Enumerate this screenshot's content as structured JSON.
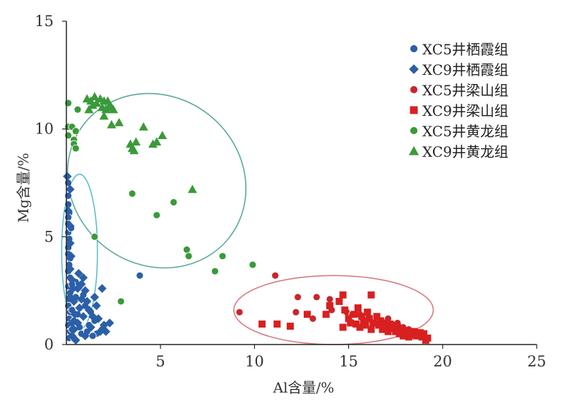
{
  "chart_data": {
    "type": "scatter",
    "xlabel": "Al含量/%",
    "ylabel": "Mg含量/%",
    "xlim": [
      0,
      25
    ],
    "ylim": [
      0,
      15
    ],
    "xticks": [
      "5",
      "10",
      "15",
      "20",
      "25"
    ],
    "yticks": [
      "0",
      "5",
      "10",
      "15"
    ],
    "grid": false,
    "legend_position": "top-right",
    "series": [
      {
        "name": "XC5井栖霞组",
        "marker": "circle",
        "color": "#2b5fa8",
        "points": [
          [
            0.1,
            7.5
          ],
          [
            0.1,
            6.9
          ],
          [
            0.1,
            6.5
          ],
          [
            0.15,
            6.1
          ],
          [
            0.1,
            5.9
          ],
          [
            0.1,
            5.6
          ],
          [
            0.1,
            5.2
          ],
          [
            0.15,
            4.9
          ],
          [
            0.1,
            4.5
          ],
          [
            0.1,
            4.2
          ],
          [
            0.2,
            4.0
          ],
          [
            0.15,
            3.7
          ],
          [
            0.1,
            3.4
          ],
          [
            0.2,
            3.1
          ],
          [
            0.1,
            2.7
          ],
          [
            0.2,
            2.4
          ],
          [
            0.15,
            2.1
          ],
          [
            0.1,
            1.8
          ],
          [
            0.2,
            1.5
          ],
          [
            0.15,
            1.2
          ],
          [
            0.1,
            0.9
          ],
          [
            0.2,
            0.6
          ],
          [
            0.15,
            0.3
          ],
          [
            0.3,
            1.6
          ],
          [
            0.4,
            1.1
          ],
          [
            0.3,
            0.7
          ],
          [
            0.5,
            2.2
          ],
          [
            0.6,
            1.4
          ],
          [
            0.7,
            0.8
          ],
          [
            0.8,
            0.5
          ],
          [
            1.0,
            1.8
          ],
          [
            1.1,
            0.6
          ],
          [
            1.3,
            1.5
          ],
          [
            1.2,
            0.9
          ],
          [
            1.5,
            1.1
          ],
          [
            1.6,
            0.5
          ],
          [
            1.9,
            0.7
          ],
          [
            0.5,
            2.9
          ],
          [
            0.4,
            0.3
          ],
          [
            0.9,
            2.3
          ],
          [
            1.4,
            0.4
          ],
          [
            3.9,
            3.2
          ],
          [
            0.3,
            2.8
          ],
          [
            0.25,
            5.4
          ]
        ]
      },
      {
        "name": "XC9井栖霞组",
        "marker": "diamond",
        "color": "#2b5fa8",
        "points": [
          [
            0.05,
            7.8
          ],
          [
            0.2,
            7.2
          ],
          [
            0.1,
            6.2
          ],
          [
            0.2,
            5.5
          ],
          [
            0.2,
            4.7
          ],
          [
            0.25,
            4.1
          ],
          [
            0.2,
            3.5
          ],
          [
            0.3,
            3.0
          ],
          [
            0.35,
            2.6
          ],
          [
            0.2,
            2.2
          ],
          [
            0.4,
            2.0
          ],
          [
            0.45,
            1.4
          ],
          [
            0.3,
            1.0
          ],
          [
            0.4,
            0.7
          ],
          [
            0.3,
            0.4
          ],
          [
            0.6,
            2.6
          ],
          [
            0.7,
            1.7
          ],
          [
            0.6,
            1.0
          ],
          [
            0.8,
            2.1
          ],
          [
            0.9,
            3.1
          ],
          [
            1.0,
            2.5
          ],
          [
            0.9,
            1.3
          ],
          [
            1.1,
            2.0
          ],
          [
            1.2,
            1.6
          ],
          [
            1.3,
            0.8
          ],
          [
            1.5,
            2.2
          ],
          [
            1.6,
            1.8
          ],
          [
            1.7,
            1.2
          ],
          [
            1.8,
            0.6
          ],
          [
            1.9,
            2.6
          ],
          [
            2.0,
            0.9
          ],
          [
            2.1,
            0.6
          ],
          [
            2.3,
            1.0
          ],
          [
            1.0,
            0.4
          ],
          [
            0.5,
            0.2
          ],
          [
            1.4,
            1.3
          ],
          [
            0.65,
            3.3
          ],
          [
            0.8,
            2.8
          ]
        ]
      },
      {
        "name": "XC5井梁山组",
        "marker": "circle",
        "color": "#c8262c",
        "points": [
          [
            9.2,
            1.5
          ],
          [
            11.1,
            3.2
          ],
          [
            12.3,
            2.2
          ],
          [
            13.3,
            2.2
          ],
          [
            12.2,
            1.5
          ],
          [
            13.1,
            1.2
          ],
          [
            14.0,
            2.1
          ],
          [
            14.1,
            1.6
          ],
          [
            14.9,
            1.5
          ],
          [
            15.2,
            1.4
          ],
          [
            15.6,
            1.4
          ],
          [
            16.1,
            1.2
          ],
          [
            16.4,
            1.0
          ],
          [
            17.1,
            1.2
          ],
          [
            17.6,
            1.0
          ],
          [
            17.9,
            0.8
          ],
          [
            18.2,
            0.7
          ],
          [
            18.6,
            0.6
          ]
        ]
      },
      {
        "name": "XC9井梁山组",
        "marker": "square",
        "color": "#d92020",
        "points": [
          [
            10.4,
            0.95
          ],
          [
            11.2,
            0.95
          ],
          [
            11.9,
            0.85
          ],
          [
            12.8,
            1.4
          ],
          [
            14.0,
            1.8
          ],
          [
            14.5,
            2.0
          ],
          [
            14.7,
            2.3
          ],
          [
            14.8,
            1.6
          ],
          [
            15.0,
            1.2
          ],
          [
            15.1,
            1.0
          ],
          [
            15.3,
            1.4
          ],
          [
            15.4,
            0.95
          ],
          [
            15.6,
            0.8
          ],
          [
            15.7,
            1.3
          ],
          [
            15.8,
            1.1
          ],
          [
            15.9,
            0.9
          ],
          [
            16.0,
            1.5
          ],
          [
            16.1,
            1.2
          ],
          [
            16.2,
            0.7
          ],
          [
            16.3,
            1.0
          ],
          [
            16.5,
            1.3
          ],
          [
            16.6,
            0.9
          ],
          [
            16.7,
            1.1
          ],
          [
            16.8,
            0.7
          ],
          [
            16.9,
            1.0
          ],
          [
            17.0,
            0.8
          ],
          [
            17.1,
            0.6
          ],
          [
            17.2,
            0.95
          ],
          [
            17.3,
            0.75
          ],
          [
            17.4,
            0.9
          ],
          [
            17.5,
            0.6
          ],
          [
            17.6,
            0.8
          ],
          [
            17.7,
            0.5
          ],
          [
            17.8,
            0.7
          ],
          [
            17.9,
            0.4
          ],
          [
            18.0,
            0.65
          ],
          [
            18.1,
            0.5
          ],
          [
            18.2,
            0.35
          ],
          [
            18.3,
            0.6
          ],
          [
            18.4,
            0.45
          ],
          [
            18.5,
            0.6
          ],
          [
            18.6,
            0.4
          ],
          [
            18.8,
            0.55
          ],
          [
            18.9,
            0.35
          ],
          [
            19.0,
            0.5
          ],
          [
            19.2,
            0.3
          ],
          [
            16.2,
            2.3
          ],
          [
            15.5,
            1.7
          ],
          [
            14.7,
            0.8
          ],
          [
            13.8,
            1.4
          ],
          [
            19.1,
            0.2
          ]
        ]
      },
      {
        "name": "XC5井黄龙组",
        "marker": "circle",
        "color": "#3a9a3a",
        "points": [
          [
            0.1,
            11.2
          ],
          [
            0.1,
            10.1
          ],
          [
            0.1,
            9.7
          ],
          [
            0.3,
            10.1
          ],
          [
            0.4,
            9.5
          ],
          [
            0.5,
            9.9
          ],
          [
            0.4,
            9.3
          ],
          [
            0.5,
            9.1
          ],
          [
            0.6,
            10.9
          ],
          [
            3.5,
            7.0
          ],
          [
            4.8,
            6.0
          ],
          [
            5.7,
            6.6
          ],
          [
            6.4,
            4.4
          ],
          [
            6.5,
            4.1
          ],
          [
            7.9,
            3.4
          ],
          [
            8.3,
            4.1
          ],
          [
            9.9,
            3.7
          ],
          [
            1.5,
            5.0
          ],
          [
            2.9,
            2.0
          ]
        ]
      },
      {
        "name": "XC9井黄龙组",
        "marker": "triangle",
        "color": "#3a9a3a",
        "points": [
          [
            1.3,
            11.3
          ],
          [
            1.4,
            11.1
          ],
          [
            1.5,
            11.5
          ],
          [
            1.6,
            11.2
          ],
          [
            1.8,
            11.4
          ],
          [
            1.9,
            11.0
          ],
          [
            2.0,
            11.3
          ],
          [
            2.1,
            10.9
          ],
          [
            2.2,
            11.3
          ],
          [
            2.3,
            11.1
          ],
          [
            2.4,
            11.0
          ],
          [
            2.5,
            10.9
          ],
          [
            2.0,
            10.6
          ],
          [
            2.4,
            10.2
          ],
          [
            2.8,
            10.3
          ],
          [
            3.4,
            9.3
          ],
          [
            3.5,
            9.1
          ],
          [
            3.6,
            9.0
          ],
          [
            3.7,
            9.4
          ],
          [
            4.1,
            10.1
          ],
          [
            4.6,
            9.3
          ],
          [
            4.8,
            9.4
          ],
          [
            5.1,
            9.7
          ],
          [
            6.7,
            7.2
          ],
          [
            1.1,
            11.4
          ],
          [
            1.2,
            10.9
          ]
        ]
      }
    ],
    "clusters": [
      {
        "group": "栖霞组",
        "cx": 0.7,
        "cy": 4.3,
        "rx": 0.95,
        "ry": 3.6,
        "color": "#5bbfcb"
      },
      {
        "group": "黄龙组",
        "cx": 4.8,
        "cy": 7.6,
        "rx": 4.9,
        "ry": 3.9,
        "angle_deg": 38,
        "color": "#5aa99a"
      },
      {
        "group": "梁山组",
        "cx": 14.2,
        "cy": 1.6,
        "rx": 5.3,
        "ry": 1.6,
        "color": "#d97a82"
      }
    ]
  }
}
